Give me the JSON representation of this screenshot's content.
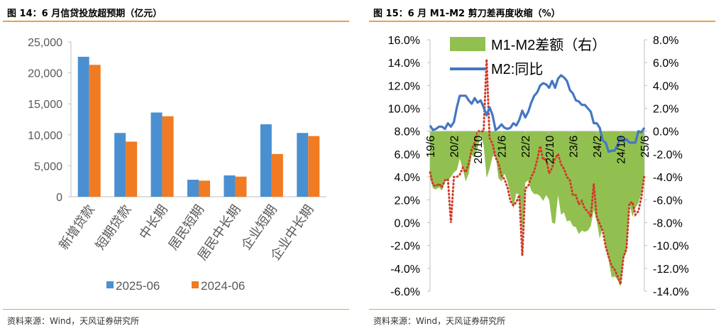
{
  "left": {
    "title": "图 14：6 月信贷投放超预期（亿元）",
    "source": "资料来源：Wind，天风证券研究所"
  },
  "right": {
    "title": "图 15：6 月 M1-M2 剪刀差再度收缩（%）",
    "source": "资料来源：Wind，天风证券研究所"
  },
  "chart_data": [
    {
      "type": "bar",
      "title": "图 14：6 月信贷投放超预期（亿元）",
      "categories": [
        "新增贷款",
        "短期贷款",
        "中长期",
        "居民短期",
        "居民中长期",
        "企业短期",
        "企业中长期"
      ],
      "series": [
        {
          "name": "2025-06",
          "color": "#4a90d0",
          "values": [
            22600,
            10300,
            13600,
            2750,
            3450,
            11700,
            10300
          ]
        },
        {
          "name": "2024-06",
          "color": "#f07b22",
          "values": [
            21300,
            8900,
            13000,
            2600,
            3250,
            6900,
            9800
          ]
        }
      ],
      "ylim": [
        0,
        25000
      ],
      "yticks": [
        0,
        5000,
        10000,
        15000,
        20000,
        25000
      ],
      "ytick_labels": [
        "0",
        "5,000",
        "10,000",
        "15,000",
        "20,000",
        "25,000"
      ],
      "legend_position": "bottom",
      "grid": false
    },
    {
      "type": "line",
      "title": "图 15：6 月 M1-M2 剪刀差再度收缩（%）",
      "x": [
        "19/6",
        "19/7",
        "19/8",
        "19/9",
        "19/10",
        "19/11",
        "19/12",
        "20/1",
        "20/2",
        "20/3",
        "20/4",
        "20/5",
        "20/6",
        "20/7",
        "20/8",
        "20/9",
        "20/10",
        "20/11",
        "20/12",
        "21/1",
        "21/2",
        "21/3",
        "21/4",
        "21/5",
        "21/6",
        "21/7",
        "21/8",
        "21/9",
        "21/10",
        "21/11",
        "21/12",
        "22/1",
        "22/2",
        "22/3",
        "22/4",
        "22/5",
        "22/6",
        "22/7",
        "22/8",
        "22/9",
        "22/10",
        "22/11",
        "22/12",
        "23/1",
        "23/2",
        "23/3",
        "23/4",
        "23/5",
        "23/6",
        "23/7",
        "23/8",
        "23/9",
        "23/10",
        "23/11",
        "23/12",
        "24/1",
        "24/2",
        "24/3",
        "24/4",
        "24/5",
        "24/6",
        "24/7",
        "24/8",
        "24/9",
        "24/10",
        "24/11",
        "24/12",
        "25/1",
        "25/2",
        "25/3",
        "25/4",
        "25/5",
        "25/6"
      ],
      "xtick_labels": [
        "19/6",
        "20/2",
        "20/10",
        "21/6",
        "22/2",
        "22/10",
        "23/6",
        "24/2",
        "24/10",
        "25/6"
      ],
      "series": [
        {
          "name": "M1-M2差额（右）",
          "type": "area",
          "axis": "right",
          "color": "#92c050",
          "values": [
            -4.1,
            -5.0,
            -5.1,
            -4.9,
            -5.2,
            -4.4,
            -4.3,
            -4.0,
            -3.6,
            -3.4,
            -2.4,
            -3.3,
            -4.4,
            -3.7,
            -2.1,
            -2.3,
            -1.5,
            -0.3,
            -1.2,
            -4.1,
            -3.3,
            -2.2,
            -2.1,
            -4.1,
            -4.4,
            -3.7,
            -4.4,
            -5.6,
            -6.8,
            -5.4,
            -5.6,
            -9.1,
            -4.5,
            -4.3,
            -5.2,
            -5.5,
            -5.5,
            -5.7,
            -6.1,
            -5.6,
            -6.0,
            -8.0,
            -8.1,
            -5.6,
            -7.3,
            -7.1,
            -7.9,
            -7.8,
            -8.3,
            -8.4,
            -9.0,
            -8.7,
            -8.8,
            -8.7,
            -8.3,
            -6.9,
            -7.9,
            -9.4,
            -8.4,
            -10.2,
            -11.3,
            -12.8,
            -12.7,
            -13.0,
            -13.6,
            -11.1,
            -10.6,
            -6.3,
            -7.5,
            -6.7,
            -6.3,
            -5.4,
            -3.7
          ]
        },
        {
          "name": "M1-M2差额（右）",
          "type": "dotted",
          "axis": "right",
          "color": "#d03a2a",
          "values": [
            -3.6,
            -4.7,
            -4.8,
            -4.6,
            -4.9,
            -4.3,
            -4.2,
            -8.0,
            -4.0,
            -4.0,
            -3.8,
            -3.2,
            -3.6,
            -2.8,
            -1.6,
            -1.0,
            0.0,
            0.0,
            0.0,
            6.3,
            -0.6,
            -1.1,
            -2.3,
            -2.8,
            -3.9,
            -4.2,
            -4.9,
            -6.1,
            -6.5,
            -6.2,
            -5.6,
            -10.9,
            -5.0,
            -4.8,
            -4.0,
            -3.5,
            -2.5,
            -1.3,
            -2.5,
            -2.4,
            -3.7,
            -3.2,
            -2.4,
            -2.0,
            -2.9,
            -3.3,
            -4.0,
            -4.3,
            -5.6,
            -5.6,
            -6.4,
            -6.1,
            -6.8,
            -7.0,
            -7.5,
            -4.6,
            -7.5,
            -8.1,
            -8.7,
            -10.1,
            -11.0,
            -11.8,
            -12.1,
            -12.7,
            -13.4,
            -11.0,
            -10.3,
            -6.3,
            -6.2,
            -7.3,
            -7.0,
            -5.8,
            -3.8
          ]
        },
        {
          "name": "M2:同比",
          "type": "line",
          "axis": "left",
          "color": "#4577c0",
          "values": [
            8.5,
            8.1,
            8.2,
            8.4,
            8.4,
            8.2,
            8.7,
            8.4,
            8.8,
            10.1,
            11.1,
            11.1,
            11.1,
            10.7,
            10.4,
            10.9,
            10.5,
            10.7,
            10.1,
            9.4,
            10.1,
            9.4,
            8.1,
            8.3,
            8.6,
            8.3,
            8.2,
            8.3,
            8.7,
            8.5,
            9.0,
            9.8,
            9.2,
            9.7,
            10.5,
            11.1,
            11.4,
            12.0,
            12.2,
            12.1,
            11.8,
            12.4,
            11.8,
            12.6,
            12.9,
            12.7,
            12.4,
            11.6,
            11.3,
            10.7,
            10.6,
            10.3,
            10.3,
            10.0,
            9.7,
            8.7,
            8.7,
            8.3,
            7.2,
            7.0,
            6.2,
            6.3,
            6.3,
            6.8,
            7.5,
            7.1,
            7.3,
            7.0,
            7.0,
            7.0,
            8.0,
            7.9,
            8.3
          ]
        }
      ],
      "yleft_ticks": [
        "16.0%",
        "14.0%",
        "12.0%",
        "10.0%",
        "8.0%",
        "6.0%",
        "4.0%",
        "2.0%",
        "0.0%",
        "-2.0%",
        "-4.0%",
        "-6.0%"
      ],
      "yright_ticks": [
        "8.0%",
        "6.0%",
        "4.0%",
        "2.0%",
        "0.0%",
        "-2.0%",
        "-4.0%",
        "-6.0%",
        "-8.0%",
        "-10.0%",
        "-12.0%",
        "-14.0%"
      ],
      "yleft_lim": [
        -6,
        16
      ],
      "yright_lim": [
        -14,
        8
      ],
      "legend_position": "top",
      "grid": false
    }
  ]
}
